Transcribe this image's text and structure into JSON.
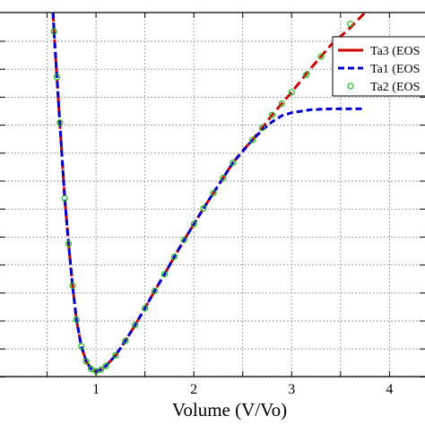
{
  "chart_data": {
    "type": "line",
    "xlabel": "Volume (V/Vo)",
    "ylabel": "",
    "xlim": [
      0,
      4.4
    ],
    "ylim": [
      -0.9,
      3.9
    ],
    "x_ticks": [
      1,
      2,
      3,
      4
    ],
    "x_tick_labels": [
      "1",
      "2",
      "3",
      "4"
    ],
    "grid": true,
    "legend_position": "top-right",
    "series": [
      {
        "name": "Ta3 (EOS",
        "color": "#cc0000",
        "style": "dashed",
        "x": [
          0.56,
          0.58,
          0.6,
          0.62,
          0.65,
          0.68,
          0.72,
          0.76,
          0.8,
          0.85,
          0.9,
          0.95,
          1.0,
          1.05,
          1.1,
          1.2,
          1.3,
          1.4,
          1.5,
          1.6,
          1.7,
          1.8,
          1.9,
          2.0,
          2.1,
          2.2,
          2.3,
          2.4,
          2.5,
          2.6,
          2.7,
          2.8,
          2.9,
          3.0,
          3.2,
          3.4,
          3.6,
          3.75
        ],
        "y": [
          3.9,
          3.45,
          3.05,
          2.65,
          2.05,
          1.45,
          0.85,
          0.3,
          -0.15,
          -0.5,
          -0.7,
          -0.8,
          -0.83,
          -0.81,
          -0.76,
          -0.62,
          -0.43,
          -0.22,
          0.0,
          0.23,
          0.45,
          0.68,
          0.9,
          1.11,
          1.32,
          1.52,
          1.72,
          1.92,
          2.08,
          2.22,
          2.38,
          2.55,
          2.7,
          2.85,
          3.17,
          3.47,
          3.7,
          3.9
        ]
      },
      {
        "name": "Ta1 (EOS",
        "color": "#0000cc",
        "style": "dashed",
        "x": [
          0.56,
          0.58,
          0.6,
          0.62,
          0.65,
          0.68,
          0.72,
          0.76,
          0.8,
          0.85,
          0.9,
          0.95,
          1.0,
          1.05,
          1.1,
          1.2,
          1.3,
          1.4,
          1.5,
          1.6,
          1.7,
          1.8,
          1.9,
          2.0,
          2.1,
          2.2,
          2.3,
          2.4,
          2.5,
          2.6,
          2.7,
          2.8,
          2.9,
          3.0,
          3.2,
          3.4,
          3.6,
          3.75
        ],
        "y": [
          3.9,
          3.45,
          3.05,
          2.65,
          2.05,
          1.45,
          0.85,
          0.3,
          -0.15,
          -0.5,
          -0.7,
          -0.8,
          -0.83,
          -0.81,
          -0.76,
          -0.62,
          -0.43,
          -0.22,
          0.0,
          0.23,
          0.45,
          0.68,
          0.9,
          1.11,
          1.32,
          1.52,
          1.72,
          1.92,
          2.07,
          2.22,
          2.35,
          2.46,
          2.54,
          2.58,
          2.62,
          2.63,
          2.63,
          2.63
        ]
      },
      {
        "name": "Ta2 (EOS",
        "color": "#22bb22",
        "style": "markers",
        "x": [
          0.57,
          0.6,
          0.63,
          0.68,
          0.72,
          0.76,
          0.8,
          0.85,
          0.9,
          0.95,
          1.0,
          1.05,
          1.1,
          1.2,
          1.3,
          1.4,
          1.5,
          1.6,
          1.7,
          1.8,
          1.9,
          2.0,
          2.1,
          2.2,
          2.3,
          2.4,
          2.6,
          2.7,
          2.8,
          2.9,
          3.0,
          3.15,
          3.3,
          3.45,
          3.6
        ],
        "y": [
          3.65,
          3.05,
          2.45,
          1.45,
          0.85,
          0.3,
          -0.15,
          -0.5,
          -0.7,
          -0.8,
          -0.83,
          -0.81,
          -0.76,
          -0.62,
          -0.43,
          -0.22,
          0.0,
          0.23,
          0.45,
          0.68,
          0.9,
          1.11,
          1.32,
          1.52,
          1.72,
          1.92,
          2.22,
          2.38,
          2.55,
          2.7,
          2.85,
          3.08,
          3.32,
          3.55,
          3.75
        ]
      }
    ]
  }
}
